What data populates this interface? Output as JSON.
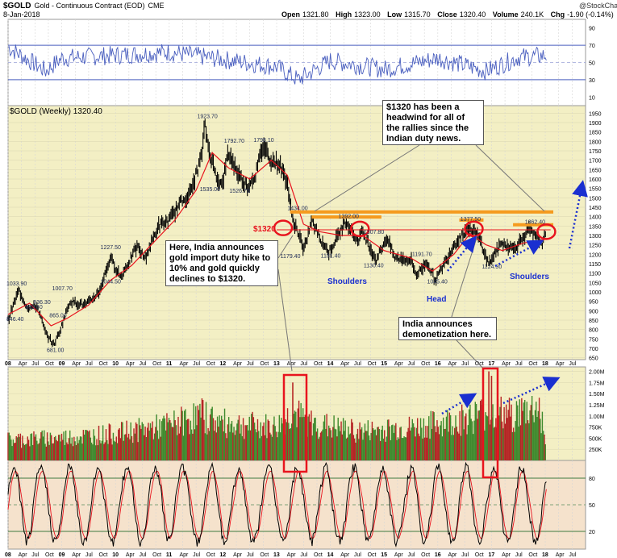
{
  "header": {
    "symbol": "$GOLD",
    "name": "Gold - Continuous Contract (EOD)",
    "exchange": "CME",
    "date": "8-Jan-2018",
    "watermark": "@StockCharts.com",
    "open_label": "Open",
    "open": "1321.80",
    "high_label": "High",
    "high": "1323.00",
    "low_label": "Low",
    "low": "1315.70",
    "close_label": "Close",
    "close": "1320.40",
    "volume_label": "Volume",
    "volume": "240.1K",
    "chg_label": "Chg",
    "chg": "-1.90 (-0.14%)"
  },
  "colors": {
    "price_bg": "#f3efc4",
    "volume_bg": "#f3efc4",
    "osc_bg": "#f5e2cc",
    "rsi_bg": "#ffffff",
    "rsi_line": "#4a5fbf",
    "candle": "#000000",
    "ma": "#e8141e",
    "resistance": "#f59a1e",
    "annotation_red": "#e8141e",
    "annotation_blue": "#1a2fd0",
    "vol_up": "#3f8a2e",
    "vol_down": "#b52525",
    "stoch_k": "#000000",
    "stoch_d": "#e8141e"
  },
  "chart_data": [
    {
      "type": "line",
      "title": "RSI",
      "yticks": [
        90,
        70,
        50,
        30,
        10
      ],
      "ylim": [
        0,
        100
      ],
      "guides": [
        70,
        50,
        30
      ]
    },
    {
      "type": "line",
      "title": "$GOLD (Weekly) 1320.40",
      "x_start": 2008.0,
      "x_end": 2018.75,
      "ylim": [
        640,
        1990
      ],
      "yticks": [
        1950,
        1900,
        1850,
        1800,
        1750,
        1700,
        1650,
        1600,
        1550,
        1500,
        1450,
        1400,
        1350,
        1300,
        1250,
        1200,
        1150,
        1100,
        1050,
        1000,
        950,
        900,
        850,
        800,
        750,
        700,
        650
      ],
      "series": [
        {
          "name": "Gold weekly close",
          "points": [
            [
              2008.0,
              850
            ],
            [
              2008.2,
              1010
            ],
            [
              2008.35,
              920
            ],
            [
              2008.55,
              920
            ],
            [
              2008.7,
              780
            ],
            [
              2008.85,
              720
            ],
            [
              2008.95,
              780
            ],
            [
              2009.15,
              950
            ],
            [
              2009.45,
              930
            ],
            [
              2009.7,
              1000
            ],
            [
              2009.9,
              1180
            ],
            [
              2010.1,
              1080
            ],
            [
              2010.4,
              1240
            ],
            [
              2010.55,
              1180
            ],
            [
              2010.8,
              1350
            ],
            [
              2011.0,
              1380
            ],
            [
              2011.2,
              1470
            ],
            [
              2011.4,
              1530
            ],
            [
              2011.6,
              1720
            ],
            [
              2011.67,
              1890
            ],
            [
              2011.72,
              1780
            ],
            [
              2011.85,
              1640
            ],
            [
              2011.98,
              1560
            ],
            [
              2012.1,
              1740
            ],
            [
              2012.3,
              1620
            ],
            [
              2012.45,
              1560
            ],
            [
              2012.6,
              1620
            ],
            [
              2012.75,
              1780
            ],
            [
              2012.9,
              1700
            ],
            [
              2013.05,
              1680
            ],
            [
              2013.2,
              1580
            ],
            [
              2013.28,
              1400
            ],
            [
              2013.45,
              1280
            ],
            [
              2013.5,
              1210
            ],
            [
              2013.65,
              1380
            ],
            [
              2013.8,
              1290
            ],
            [
              2013.97,
              1210
            ],
            [
              2014.2,
              1330
            ],
            [
              2014.3,
              1380
            ],
            [
              2014.5,
              1270
            ],
            [
              2014.6,
              1320
            ],
            [
              2014.85,
              1170
            ],
            [
              2015.05,
              1290
            ],
            [
              2015.2,
              1180
            ],
            [
              2015.5,
              1170
            ],
            [
              2015.6,
              1090
            ],
            [
              2015.8,
              1160
            ],
            [
              2015.95,
              1060
            ],
            [
              2016.1,
              1140
            ],
            [
              2016.3,
              1250
            ],
            [
              2016.55,
              1340
            ],
            [
              2016.65,
              1330
            ],
            [
              2016.8,
              1270
            ],
            [
              2016.9,
              1180
            ],
            [
              2016.95,
              1150
            ],
            [
              2017.05,
              1200
            ],
            [
              2017.2,
              1260
            ],
            [
              2017.4,
              1230
            ],
            [
              2017.5,
              1260
            ],
            [
              2017.7,
              1330
            ],
            [
              2017.85,
              1280
            ],
            [
              2017.95,
              1260
            ],
            [
              2018.02,
              1320
            ]
          ]
        },
        {
          "name": "MA",
          "points": [
            [
              2008.0,
              880
            ],
            [
              2008.4,
              940
            ],
            [
              2008.8,
              820
            ],
            [
              2009.1,
              860
            ],
            [
              2009.5,
              930
            ],
            [
              2009.9,
              1060
            ],
            [
              2010.3,
              1140
            ],
            [
              2010.7,
              1260
            ],
            [
              2011.1,
              1380
            ],
            [
              2011.5,
              1540
            ],
            [
              2011.8,
              1740
            ],
            [
              2012.1,
              1660
            ],
            [
              2012.5,
              1600
            ],
            [
              2012.9,
              1700
            ],
            [
              2013.2,
              1620
            ],
            [
              2013.5,
              1360
            ],
            [
              2013.8,
              1320
            ],
            [
              2014.2,
              1300
            ],
            [
              2014.6,
              1300
            ],
            [
              2015.0,
              1220
            ],
            [
              2015.5,
              1180
            ],
            [
              2015.9,
              1110
            ],
            [
              2016.3,
              1200
            ],
            [
              2016.6,
              1310
            ],
            [
              2016.9,
              1250
            ],
            [
              2017.2,
              1220
            ],
            [
              2017.6,
              1260
            ],
            [
              2018.02,
              1280
            ]
          ]
        }
      ],
      "labels": [
        {
          "x": 2008.0,
          "v": 1033.9,
          "text": "1033.90"
        },
        {
          "x": 2008.35,
          "v": 909.6,
          "text": "909.60"
        },
        {
          "x": 2008.5,
          "v": 936.3,
          "text": "936.30"
        },
        {
          "x": 2008.85,
          "v": 1007.7,
          "text": "1007.70"
        },
        {
          "x": 2008.0,
          "v": 846.4,
          "text": "846.40"
        },
        {
          "x": 2008.8,
          "v": 865.0,
          "text": "865.00"
        },
        {
          "x": 2008.75,
          "v": 681.0,
          "text": "681.00"
        },
        {
          "x": 2009.75,
          "v": 1044.5,
          "text": "1044.50"
        },
        {
          "x": 2009.75,
          "v": 1227.5,
          "text": "1227.50"
        },
        {
          "x": 2011.55,
          "v": 1923.7,
          "text": "1923.70"
        },
        {
          "x": 2011.6,
          "v": 1535.0,
          "text": "1535.00"
        },
        {
          "x": 2012.05,
          "v": 1792.7,
          "text": "1792.70"
        },
        {
          "x": 2012.6,
          "v": 1798.1,
          "text": "1798.10"
        },
        {
          "x": 2012.15,
          "v": 1526.7,
          "text": "1526.70"
        },
        {
          "x": 2013.23,
          "v": 1434.0,
          "text": "1434.00"
        },
        {
          "x": 2013.1,
          "v": 1179.4,
          "text": "1179.40"
        },
        {
          "x": 2013.85,
          "v": 1181.4,
          "text": "1181.40"
        },
        {
          "x": 2014.18,
          "v": 1392.0,
          "text": "1392.00"
        },
        {
          "x": 2014.65,
          "v": 1307.8,
          "text": "1307.80"
        },
        {
          "x": 2014.65,
          "v": 1130.4,
          "text": "1130.40"
        },
        {
          "x": 2015.55,
          "v": 1191.7,
          "text": "1191.70"
        },
        {
          "x": 2015.83,
          "v": 1045.4,
          "text": "1045.40"
        },
        {
          "x": 2016.45,
          "v": 1377.5,
          "text": "1377.50"
        },
        {
          "x": 2016.85,
          "v": 1124.3,
          "text": "1124.30"
        },
        {
          "x": 2017.65,
          "v": 1362.4,
          "text": "1362.40"
        }
      ],
      "resistance": [
        {
          "x1": 2013.25,
          "x2": 2018.15,
          "v": 1425
        },
        {
          "x1": 2013.65,
          "x2": 2014.95,
          "v": 1398
        },
        {
          "x1": 2016.4,
          "x2": 2016.85,
          "v": 1382
        },
        {
          "x1": 2017.4,
          "x2": 2018.15,
          "v": 1357
        }
      ],
      "line_1320": {
        "x1": 2013.0,
        "x2": 2018.1,
        "v": 1330
      },
      "ellipses": [
        {
          "x": 2013.12,
          "v": 1340
        },
        {
          "x": 2014.55,
          "v": 1335
        },
        {
          "x": 2016.67,
          "v": 1335
        },
        {
          "x": 2018.02,
          "v": 1320
        }
      ]
    },
    {
      "type": "bar",
      "title": "Volume",
      "ylim": [
        0,
        2100
      ],
      "yticks": [
        {
          "v": 2000,
          "text": "2.00M"
        },
        {
          "v": 1750,
          "text": "1.75M"
        },
        {
          "v": 1500,
          "text": "1.50M"
        },
        {
          "v": 1250,
          "text": "1.25M"
        },
        {
          "v": 1000,
          "text": "1.00M"
        },
        {
          "v": 750,
          "text": "750K"
        },
        {
          "v": 500,
          "text": "500K"
        },
        {
          "v": 250,
          "text": "250K"
        }
      ],
      "profile": [
        [
          2008.0,
          500
        ],
        [
          2009.0,
          550
        ],
        [
          2010.0,
          650
        ],
        [
          2011.0,
          850
        ],
        [
          2011.6,
          1100
        ],
        [
          2012.0,
          900
        ],
        [
          2013.0,
          800
        ],
        [
          2013.3,
          1150
        ],
        [
          2013.6,
          900
        ],
        [
          2014.5,
          700
        ],
        [
          2015.5,
          780
        ],
        [
          2016.3,
          950
        ],
        [
          2016.9,
          1150
        ],
        [
          2017.4,
          1100
        ],
        [
          2017.9,
          1300
        ],
        [
          2018.02,
          250
        ]
      ],
      "spikes": [
        {
          "x": 2013.3,
          "v": 1750
        },
        {
          "x": 2016.95,
          "v": 2000
        },
        {
          "x": 2017.0,
          "v": 1900
        }
      ]
    },
    {
      "type": "line",
      "title": "Stochastic",
      "ylim": [
        0,
        100
      ],
      "yticks": [
        80,
        50,
        20
      ],
      "guides": [
        80,
        50,
        20
      ]
    }
  ],
  "x_axis": {
    "ticks": [
      {
        "x": 2008.0,
        "label": "08",
        "bold": true
      },
      {
        "x": 2008.25,
        "label": "Apr"
      },
      {
        "x": 2008.5,
        "label": "Jul"
      },
      {
        "x": 2008.75,
        "label": "Oct"
      },
      {
        "x": 2009.0,
        "label": "09",
        "bold": true
      },
      {
        "x": 2009.25,
        "label": "Apr"
      },
      {
        "x": 2009.5,
        "label": "Jul"
      },
      {
        "x": 2009.75,
        "label": "Oct"
      },
      {
        "x": 2010.0,
        "label": "10",
        "bold": true
      },
      {
        "x": 2010.25,
        "label": "Apr"
      },
      {
        "x": 2010.5,
        "label": "Jul"
      },
      {
        "x": 2010.75,
        "label": "Oct"
      },
      {
        "x": 2011.0,
        "label": "11",
        "bold": true
      },
      {
        "x": 2011.25,
        "label": "Apr"
      },
      {
        "x": 2011.5,
        "label": "Jul"
      },
      {
        "x": 2011.75,
        "label": "Oct"
      },
      {
        "x": 2012.0,
        "label": "12",
        "bold": true
      },
      {
        "x": 2012.25,
        "label": "Apr"
      },
      {
        "x": 2012.5,
        "label": "Jul"
      },
      {
        "x": 2012.75,
        "label": "Oct"
      },
      {
        "x": 2013.0,
        "label": "13",
        "bold": true
      },
      {
        "x": 2013.25,
        "label": "Apr"
      },
      {
        "x": 2013.5,
        "label": "Jul"
      },
      {
        "x": 2013.75,
        "label": "Oct"
      },
      {
        "x": 2014.0,
        "label": "14",
        "bold": true
      },
      {
        "x": 2014.25,
        "label": "Apr"
      },
      {
        "x": 2014.5,
        "label": "Jul"
      },
      {
        "x": 2014.75,
        "label": "Oct"
      },
      {
        "x": 2015.0,
        "label": "15",
        "bold": true
      },
      {
        "x": 2015.25,
        "label": "Apr"
      },
      {
        "x": 2015.5,
        "label": "Jul"
      },
      {
        "x": 2015.75,
        "label": "Oct"
      },
      {
        "x": 2016.0,
        "label": "16",
        "bold": true
      },
      {
        "x": 2016.25,
        "label": "Apr"
      },
      {
        "x": 2016.5,
        "label": "Jul"
      },
      {
        "x": 2016.75,
        "label": "Oct"
      },
      {
        "x": 2017.0,
        "label": "17",
        "bold": true
      },
      {
        "x": 2017.25,
        "label": "Apr"
      },
      {
        "x": 2017.5,
        "label": "Jul"
      },
      {
        "x": 2017.75,
        "label": "Oct"
      },
      {
        "x": 2018.0,
        "label": "18",
        "bold": true
      },
      {
        "x": 2018.25,
        "label": "Apr"
      },
      {
        "x": 2018.5,
        "label": "Jul"
      }
    ]
  },
  "annotations": {
    "label_1320": "$1320",
    "headwind_text": "$1320 has been a headwind for all of the rallies since the Indian duty news.",
    "india_duty_text": "Here, India announces gold import duty hike to 10% and gold quickly declines to $1320.",
    "demonetization_text": "India announces demonetization here.",
    "shoulders_left": "Shoulders",
    "head": "Head",
    "shoulders_right": "Shoulders"
  }
}
